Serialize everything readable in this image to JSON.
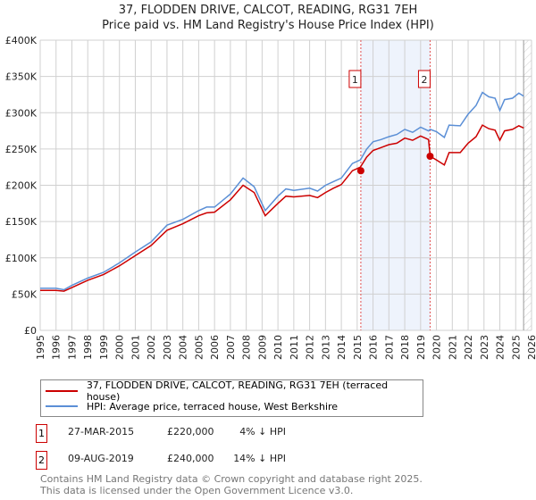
{
  "chart_data": {
    "type": "line",
    "title": "37, FLODDEN DRIVE, CALCOT, READING, RG31 7EH",
    "subtitle": "Price paid vs. HM Land Registry's House Price Index (HPI)",
    "xlim": [
      1995,
      2026
    ],
    "ylim": [
      0,
      400000
    ],
    "yticks": [
      0,
      50000,
      100000,
      150000,
      200000,
      250000,
      300000,
      350000,
      400000
    ],
    "ytick_labels": [
      "£0",
      "£50K",
      "£100K",
      "£150K",
      "£200K",
      "£250K",
      "£300K",
      "£350K",
      "£400K"
    ],
    "xtick_labels": [
      "1995",
      "1996",
      "1997",
      "1998",
      "1999",
      "2000",
      "2001",
      "2002",
      "2003",
      "2004",
      "2005",
      "2006",
      "2007",
      "2008",
      "2009",
      "2010",
      "2011",
      "2012",
      "2013",
      "2014",
      "2015",
      "2016",
      "2017",
      "2018",
      "2019",
      "2020",
      "2021",
      "2022",
      "2023",
      "2024",
      "2025",
      "2026"
    ],
    "grid": true,
    "series": [
      {
        "name": "37, FLODDEN DRIVE, CALCOT, READING, RG31 7EH (terraced house)",
        "color": "#cc0000",
        "x": [
          1995,
          1996,
          1996.5,
          1997,
          1998,
          1999,
          2000,
          2001,
          2002,
          2003,
          2004,
          2005,
          2005.5,
          2006,
          2007,
          2007.8,
          2008.5,
          2009.2,
          2010,
          2010.5,
          2011,
          2012,
          2012.5,
          2013,
          2013.5,
          2014,
          2014.7,
          2015.2,
          2015.6,
          2016,
          2016.5,
          2017,
          2017.5,
          2018,
          2018.5,
          2019,
          2019.5,
          2019.6,
          2020,
          2020.5,
          2020.8,
          2021.5,
          2022,
          2022.5,
          2022.9,
          2023.3,
          2023.7,
          2024,
          2024.3,
          2024.8,
          2025.2,
          2025.5
        ],
        "y": [
          55000,
          55000,
          54000,
          59000,
          69000,
          77000,
          89000,
          103000,
          117000,
          138000,
          147000,
          158000,
          162000,
          163000,
          180000,
          200000,
          190000,
          158000,
          175000,
          185000,
          184000,
          186000,
          183000,
          190000,
          196000,
          201000,
          220000,
          225000,
          239000,
          248000,
          252000,
          256000,
          258000,
          265000,
          262000,
          268000,
          263000,
          240000,
          235000,
          228000,
          245000,
          245000,
          258000,
          267000,
          283000,
          278000,
          276000,
          262000,
          275000,
          277000,
          282000,
          279000
        ]
      },
      {
        "name": "HPI: Average price, terraced house, West Berkshire",
        "color": "#5b8fd6",
        "x": [
          1995,
          1996,
          1996.5,
          1997,
          1998,
          1999,
          2000,
          2001,
          2002,
          2003,
          2004,
          2005,
          2005.5,
          2006,
          2007,
          2007.8,
          2008.5,
          2009.2,
          2010,
          2010.5,
          2011,
          2012,
          2012.5,
          2013,
          2013.5,
          2014,
          2014.7,
          2015.2,
          2015.6,
          2016,
          2016.5,
          2017,
          2017.5,
          2018,
          2018.5,
          2019,
          2019.5,
          2019.6,
          2020,
          2020.5,
          2020.8,
          2021.5,
          2022,
          2022.5,
          2022.9,
          2023.3,
          2023.7,
          2024,
          2024.3,
          2024.8,
          2025.2,
          2025.5
        ],
        "y": [
          58000,
          58000,
          56000,
          62000,
          72000,
          80000,
          93000,
          108000,
          122000,
          145000,
          153000,
          165000,
          170000,
          170000,
          188000,
          210000,
          198000,
          165000,
          185000,
          195000,
          193000,
          196000,
          192000,
          200000,
          205000,
          210000,
          230000,
          235000,
          250000,
          260000,
          263000,
          267000,
          270000,
          277000,
          273000,
          280000,
          275000,
          277000,
          274000,
          266000,
          283000,
          282000,
          298000,
          310000,
          328000,
          322000,
          320000,
          303000,
          318000,
          320000,
          327000,
          323000
        ]
      }
    ],
    "sales": [
      {
        "label": "1",
        "x": 2015.23,
        "y": 220000,
        "date": "27-MAR-2015",
        "price": "£220,000",
        "hpi_diff": "4% ↓ HPI"
      },
      {
        "label": "2",
        "x": 2019.6,
        "y": 240000,
        "date": "09-AUG-2019",
        "price": "£240,000",
        "hpi_diff": "14% ↓ HPI"
      }
    ],
    "shaded_range": [
      2015.23,
      2019.6
    ],
    "projection_from": 2025.5
  },
  "footer": {
    "line1": "Contains HM Land Registry data © Crown copyright and database right 2025.",
    "line2": "This data is licensed under the Open Government Licence v3.0."
  }
}
